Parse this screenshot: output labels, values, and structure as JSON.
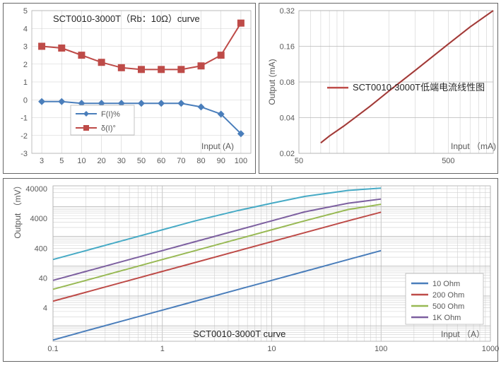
{
  "chart1": {
    "type": "line",
    "title": "SCT0010-3000T（Rb：10Ω）curve",
    "x_label": "Input (A)",
    "x_categories": [
      "3",
      "5",
      "10",
      "20",
      "30",
      "50",
      "60",
      "70",
      "80",
      "90",
      "100"
    ],
    "y_min": -3,
    "y_max": 5,
    "y_step": 1,
    "series": [
      {
        "name": "F(I)%",
        "color": "#4a7ebb",
        "marker": "diamond",
        "values": [
          -0.1,
          -0.1,
          -0.2,
          -0.2,
          -0.2,
          -0.2,
          -0.2,
          -0.2,
          -0.4,
          -0.8,
          -1.9
        ]
      },
      {
        "name": "δ(I)°",
        "color": "#be4b48",
        "marker": "square",
        "values": [
          3.0,
          2.9,
          2.5,
          2.1,
          1.8,
          1.7,
          1.7,
          1.7,
          1.9,
          2.5,
          4.3
        ]
      }
    ],
    "title_fontsize": 13,
    "label_fontsize": 12,
    "tick_fontsize": 11,
    "grid_color": "#d0d0d0",
    "axis_color": "#808080",
    "background": "#ffffff"
  },
  "chart2": {
    "type": "line-loglog",
    "title": "SCT0010-3000T低端电流线性图",
    "x_label": "Input （mA)",
    "y_label": "Output (mA)",
    "x_ticks": [
      50,
      500
    ],
    "y_ticks": [
      0.02,
      0.04,
      0.08,
      0.16,
      0.32
    ],
    "series": [
      {
        "name": "SCT0010-3000T低端电流线性图",
        "color": "#be4b48",
        "x": [
          70,
          80,
          100,
          150,
          200,
          300,
          500,
          700,
          1000
        ],
        "y": [
          0.0245,
          0.028,
          0.034,
          0.05,
          0.067,
          0.1,
          0.167,
          0.233,
          0.32
        ]
      }
    ],
    "title_fontsize": 12,
    "label_fontsize": 12,
    "tick_fontsize": 11,
    "grid_color": "#d0d0d0",
    "axis_color": "#808080",
    "background": "#ffffff"
  },
  "chart3": {
    "type": "line-loglog",
    "title": "SCT0010-3000T curve",
    "x_label": "Input （A）",
    "y_label": "Output （mV）",
    "x_ticks": [
      0.1,
      1,
      10,
      100,
      1000
    ],
    "y_ticks": [
      4,
      40,
      400,
      4000,
      40000
    ],
    "series": [
      {
        "name": "10 Ohm",
        "color": "#4a7ebb",
        "x": [
          0.1,
          0.2,
          0.5,
          1,
          2,
          5,
          10,
          20,
          50,
          100
        ],
        "y": [
          0.33,
          0.67,
          1.67,
          3.33,
          6.67,
          16.7,
          33.3,
          66.7,
          167,
          333
        ]
      },
      {
        "name": "200 Ohm",
        "color": "#be4b48",
        "x": [
          0.1,
          0.2,
          0.5,
          1,
          2,
          5,
          10,
          20,
          50,
          100
        ],
        "y": [
          6.67,
          13.3,
          33.3,
          66.7,
          133,
          333,
          667,
          1333,
          3333,
          6500
        ]
      },
      {
        "name": "500 Ohm",
        "color": "#98b954",
        "x": [
          0.1,
          0.2,
          0.5,
          1,
          2,
          5,
          10,
          20,
          50,
          100
        ],
        "y": [
          16.7,
          33.3,
          83.3,
          167,
          333,
          833,
          1667,
          3333,
          8000,
          12000
        ]
      },
      {
        "name": "1K Ohm",
        "color": "#7d60a0",
        "x": [
          0.1,
          0.2,
          0.5,
          1,
          2,
          5,
          10,
          20,
          50,
          100
        ],
        "y": [
          33.3,
          66.7,
          167,
          333,
          667,
          1667,
          3333,
          6667,
          13000,
          18000
        ]
      },
      {
        "name": "",
        "color": "#46aac5",
        "x": [
          0.1,
          0.2,
          0.5,
          1,
          2,
          5,
          10,
          20,
          50,
          100
        ],
        "y": [
          167,
          333,
          833,
          1667,
          3333,
          7500,
          13000,
          22000,
          35000,
          42000
        ]
      }
    ],
    "title_fontsize": 14,
    "label_fontsize": 12,
    "tick_fontsize": 11,
    "grid_color": "#d0d0d0",
    "axis_color": "#808080",
    "background": "#ffffff",
    "legend_names": [
      "10 Ohm",
      "200 Ohm",
      "500 Ohm",
      "1K Ohm"
    ],
    "legend_colors": [
      "#4a7ebb",
      "#be4b48",
      "#98b954",
      "#7d60a0"
    ]
  }
}
